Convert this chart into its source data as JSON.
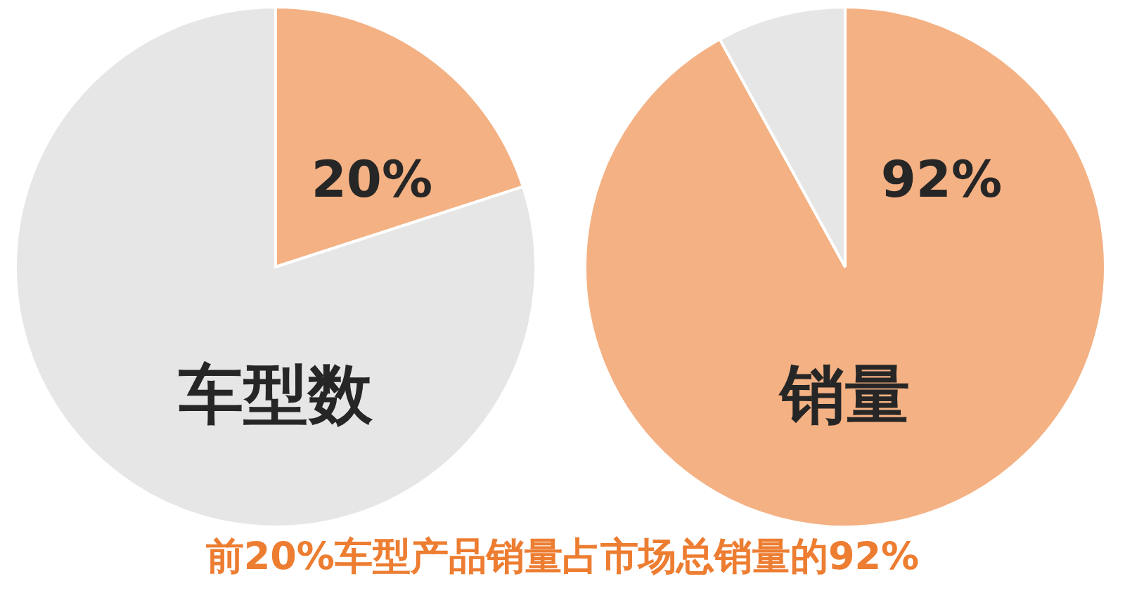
{
  "chart_data": [
    {
      "type": "pie",
      "title": "车型数",
      "categories": [
        null,
        null
      ],
      "values": [
        20,
        80
      ],
      "colors": [
        "#f4b183",
        "#e7e6e6"
      ],
      "value_labels": [
        "20%",
        null
      ]
    },
    {
      "type": "pie",
      "title": "销量",
      "categories": [
        null,
        null
      ],
      "values": [
        92,
        8
      ],
      "colors": [
        "#f4b183",
        "#e7e6e6"
      ],
      "value_labels": [
        "92%",
        null
      ],
      "annotations": [
        "前20%车型产品销量占市场总销量的92%"
      ]
    }
  ]
}
